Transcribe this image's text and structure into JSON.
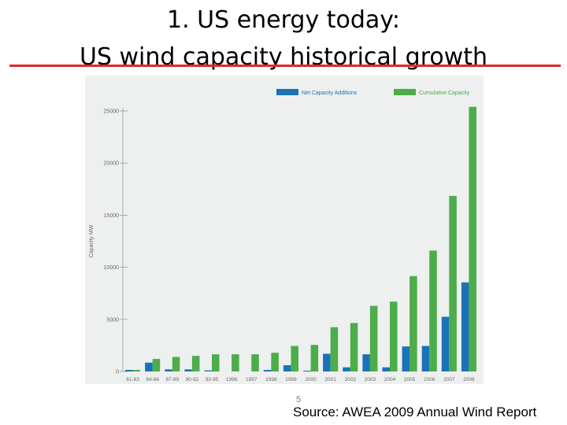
{
  "slide": {
    "title_line1": "1.   US energy today:",
    "title_line2": "US wind capacity historical growth",
    "page_number": "5",
    "source": "Source:  AWEA 2009 Annual Wind Report"
  },
  "colors": {
    "title_rule": "#dd2a2a",
    "net_additions": "#1a73b8",
    "cumulative": "#4cad4a",
    "chart_background": "#eeefef"
  },
  "chart_data": {
    "type": "bar",
    "title": "",
    "xlabel": "",
    "ylabel": "Capacity MW",
    "ylim": [
      0,
      25000
    ],
    "yticks": [
      0,
      5000,
      10000,
      15000,
      20000,
      25000
    ],
    "grid": false,
    "legend_position": "top-right",
    "categories": [
      "81-83",
      "84-86",
      "87-89",
      "90-92",
      "93-95",
      "1996",
      "1997",
      "1998",
      "1999",
      "2000",
      "2001",
      "2002",
      "2003",
      "2004",
      "2005",
      "2006",
      "2007",
      "2008"
    ],
    "series": [
      {
        "name": "Net Capacity Additions",
        "values": [
          150,
          850,
          200,
          200,
          100,
          0,
          0,
          150,
          600,
          70,
          1700,
          400,
          1650,
          400,
          2400,
          2450,
          5250,
          8550
        ]
      },
      {
        "name": "Cumulative Capacity",
        "values": [
          150,
          1200,
          1400,
          1500,
          1650,
          1650,
          1650,
          1800,
          2450,
          2550,
          4250,
          4650,
          6300,
          6700,
          9150,
          11600,
          16850,
          25400
        ]
      }
    ]
  }
}
